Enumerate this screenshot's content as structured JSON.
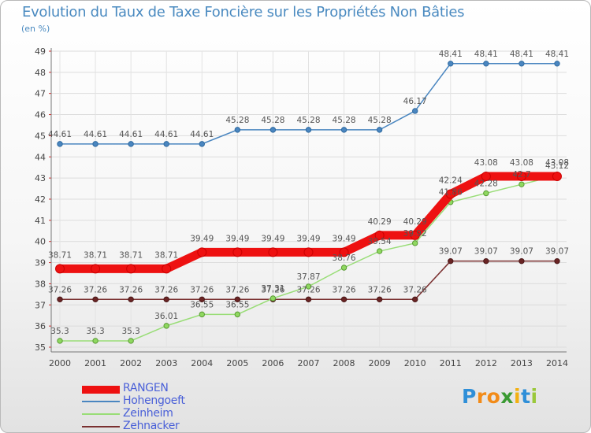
{
  "chart_data": {
    "type": "line",
    "title": "Evolution du Taux de Taxe Foncière sur les Propriétés Non Bâties",
    "ylabel": "(en %)",
    "xlabel": "",
    "categories": [
      "2000",
      "2001",
      "2002",
      "2003",
      "2004",
      "2005",
      "2006",
      "2007",
      "2008",
      "2009",
      "2010",
      "2011",
      "2012",
      "2013",
      "2014"
    ],
    "ylim": [
      35,
      49
    ],
    "yticks": [
      35,
      36,
      37,
      38,
      39,
      40,
      41,
      42,
      43,
      44,
      45,
      46,
      47,
      48,
      49
    ],
    "grid": true,
    "legend_position": "bottom-left",
    "series": [
      {
        "name": "RANGEN",
        "color": "#ee1111",
        "values": [
          38.71,
          38.71,
          38.71,
          38.71,
          39.49,
          39.49,
          39.49,
          39.49,
          39.49,
          40.29,
          40.29,
          42.24,
          43.08,
          43.08,
          43.08
        ],
        "labels": [
          "38.71",
          "38.71",
          "38.71",
          "38.71",
          "39.49",
          "39.49",
          "39.49",
          "39.49",
          "39.49",
          "40.29",
          "40.29",
          "42.24",
          "43.08",
          "43.08",
          "43.08"
        ]
      },
      {
        "name": "Hohengoeft",
        "color": "#4a86c0",
        "values": [
          44.61,
          44.61,
          44.61,
          44.61,
          44.61,
          45.28,
          45.28,
          45.28,
          45.28,
          45.28,
          46.17,
          48.41,
          48.41,
          48.41,
          48.41
        ],
        "labels": [
          "44.61",
          "44.61",
          "44.61",
          "44.61",
          "44.61",
          "45.28",
          "45.28",
          "45.28",
          "45.28",
          "45.28",
          "46.17",
          "48.41",
          "48.41",
          "48.41",
          "48.41"
        ]
      },
      {
        "name": "Zeinheim",
        "color": "#99dd77",
        "values": [
          35.3,
          35.3,
          35.3,
          36.01,
          36.55,
          36.55,
          37.31,
          37.87,
          38.76,
          39.54,
          39.92,
          41.86,
          42.28,
          42.7,
          43.12
        ],
        "labels": [
          "35.3",
          "35.3",
          "35.3",
          "36.01",
          "36.55",
          "36.55",
          "37.31",
          "37.87",
          "38.76",
          "39.54",
          "39.92",
          "41.86",
          "42.28",
          "42.7",
          "43.12"
        ]
      },
      {
        "name": "Zehnacker",
        "color": "#7a3030",
        "values": [
          37.26,
          37.26,
          37.26,
          37.26,
          37.26,
          37.26,
          37.26,
          37.26,
          37.26,
          37.26,
          37.26,
          39.07,
          39.07,
          39.07,
          39.07
        ],
        "labels": [
          "37.26",
          "37.26",
          "37.26",
          "37.26",
          "37.26",
          "37.26",
          "37.26",
          "37.26",
          "37.26",
          "37.26",
          "37.26",
          "39.07",
          "39.07",
          "39.07",
          "39.07"
        ]
      }
    ]
  },
  "legend": {
    "items": [
      {
        "label": "RANGEN",
        "color": "#ee1111"
      },
      {
        "label": "Hohengoeft",
        "color": "#4a86c0"
      },
      {
        "label": "Zeinheim",
        "color": "#99dd77"
      },
      {
        "label": "Zehnacker",
        "color": "#7a3030"
      }
    ]
  },
  "logo": {
    "letters": [
      "P",
      "r",
      "o",
      "x",
      "i",
      "t",
      "i"
    ],
    "colors": [
      "#2f8fd8",
      "#f28b18",
      "#f28b18",
      "#3a9a32",
      "#f2b010",
      "#2f8fd8",
      "#9ac83a"
    ]
  }
}
